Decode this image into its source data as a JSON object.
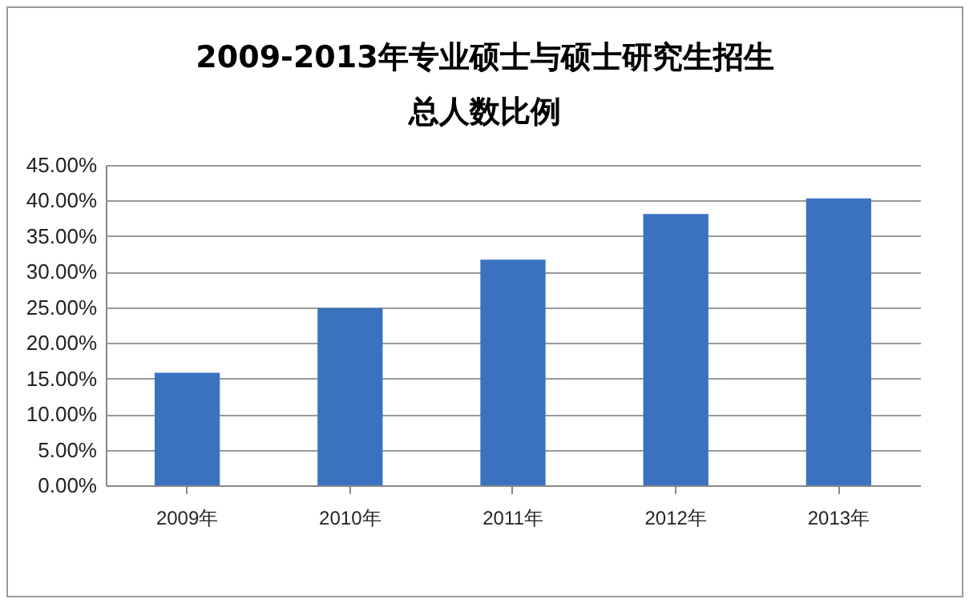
{
  "chart_data": {
    "type": "bar",
    "title": "2009-2013年专业硕士与硕士研究生招生总人数比例",
    "categories": [
      "2009年",
      "2010年",
      "2011年",
      "2012年",
      "2013年"
    ],
    "values": [
      15.8,
      24.9,
      31.7,
      38.1,
      40.3
    ],
    "color": "#3a72bf",
    "ylim": [
      0,
      45
    ],
    "yticks": [
      {
        "value": 0,
        "label": "0.00%"
      },
      {
        "value": 5,
        "label": "5.00%"
      },
      {
        "value": 10,
        "label": "10.00%"
      },
      {
        "value": 15,
        "label": "15.00%"
      },
      {
        "value": 20,
        "label": "20.00%"
      },
      {
        "value": 25,
        "label": "25.00%"
      },
      {
        "value": 30,
        "label": "30.00%"
      },
      {
        "value": 35,
        "label": "35.00%"
      },
      {
        "value": 40,
        "label": "40.00%"
      },
      {
        "value": 45,
        "label": "45.00%"
      }
    ],
    "grid": "y"
  }
}
